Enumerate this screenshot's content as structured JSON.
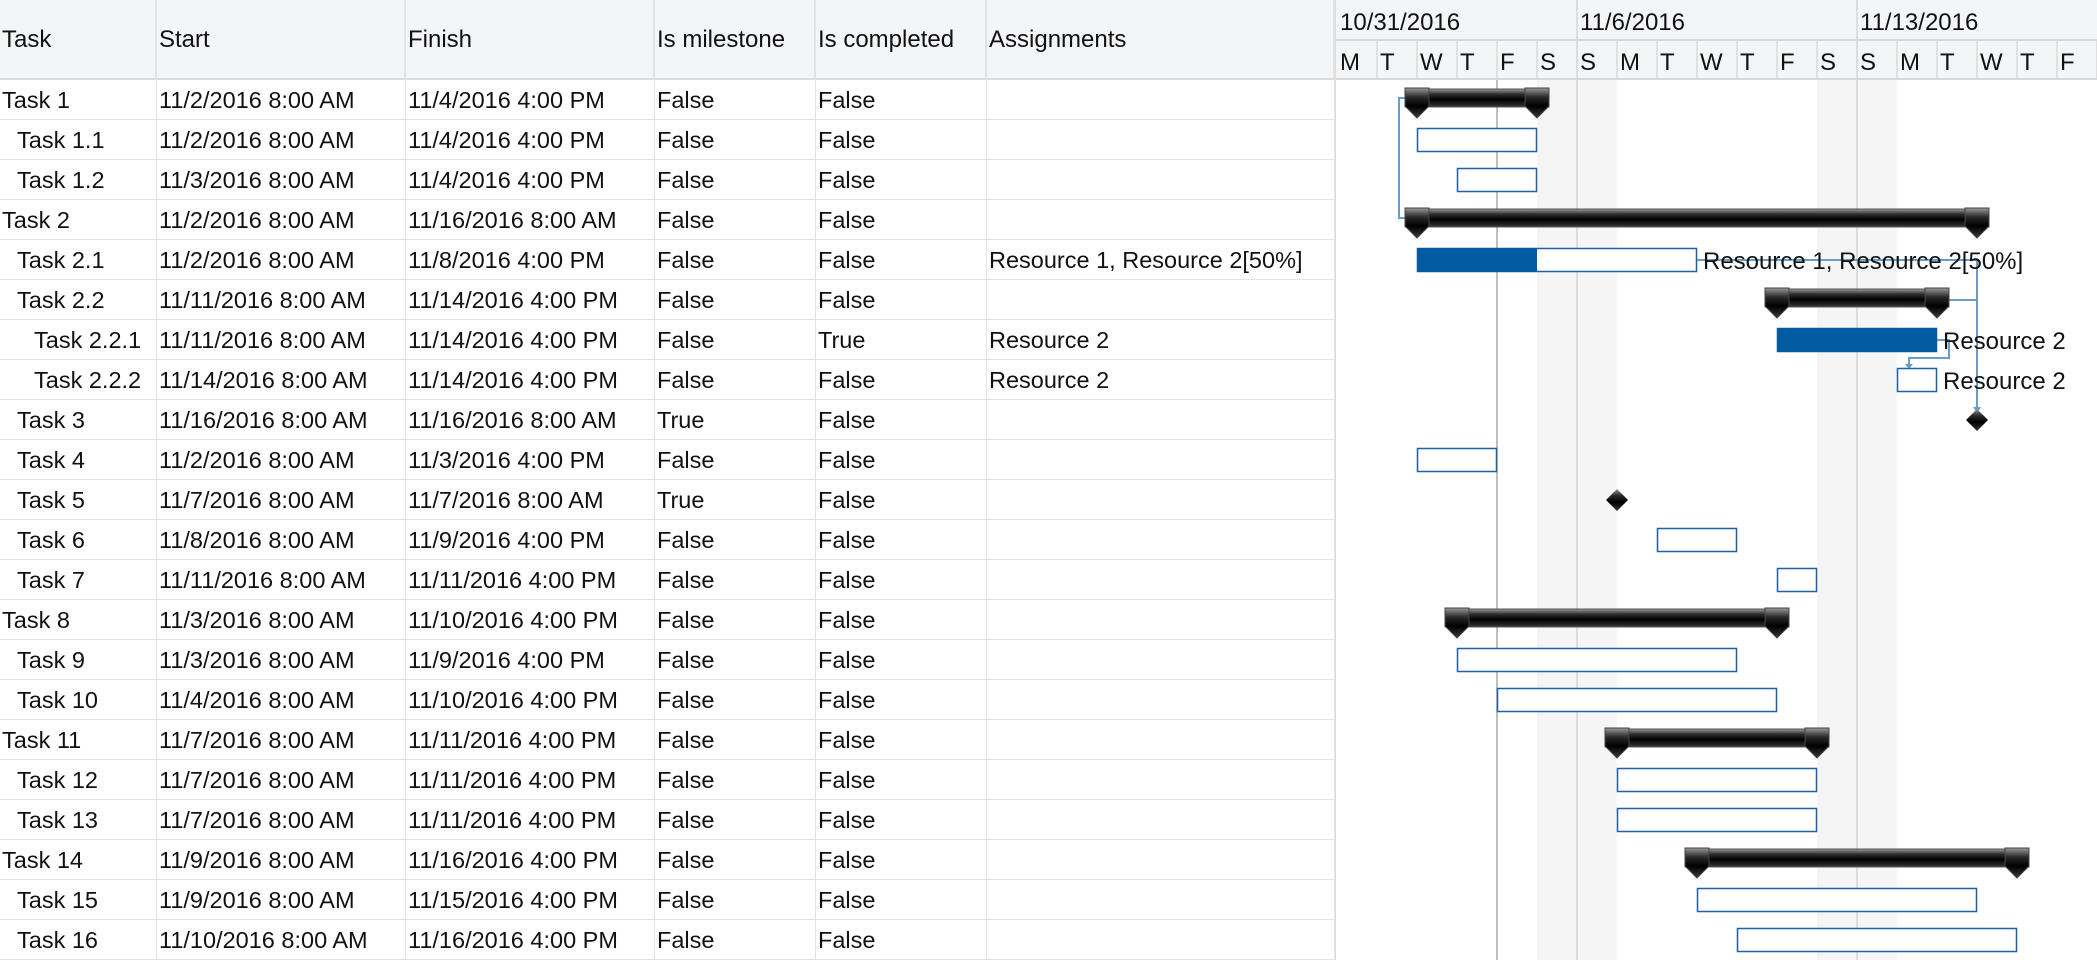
{
  "columns": {
    "task": "Task",
    "start": "Start",
    "finish": "Finish",
    "milestone": "Is milestone",
    "completed": "Is completed",
    "assignments": "Assignments"
  },
  "timeline": {
    "weeks": [
      "10/31/2016",
      "11/6/2016",
      "11/13/2016"
    ],
    "days": [
      "M",
      "T",
      "W",
      "T",
      "F",
      "S",
      "S",
      "M",
      "T",
      "W",
      "T",
      "F",
      "S",
      "S",
      "M",
      "T",
      "W",
      "T",
      "F"
    ],
    "weekend_shade": "#f5f5f5",
    "current_line_date": "11/4/2016"
  },
  "colors": {
    "bar_border": "#1f5fa8",
    "progress": "#005ba1",
    "summary": "#000000",
    "connector": "#6a9ec8"
  },
  "tasks": [
    {
      "name": "Task 1",
      "level": 0,
      "summary": true,
      "start": "11/2/2016 8:00 AM",
      "finish": "11/4/2016 4:00 PM",
      "milestone": "False",
      "completed": "False",
      "assignments": "",
      "progress": 0
    },
    {
      "name": "Task 1.1",
      "level": 1,
      "summary": false,
      "start": "11/2/2016 8:00 AM",
      "finish": "11/4/2016 4:00 PM",
      "milestone": "False",
      "completed": "False",
      "assignments": "",
      "progress": 0
    },
    {
      "name": "Task 1.2",
      "level": 1,
      "summary": false,
      "start": "11/3/2016 8:00 AM",
      "finish": "11/4/2016 4:00 PM",
      "milestone": "False",
      "completed": "False",
      "assignments": "",
      "progress": 0
    },
    {
      "name": "Task 2",
      "level": 0,
      "summary": true,
      "start": "11/2/2016 8:00 AM",
      "finish": "11/16/2016 8:00 AM",
      "milestone": "False",
      "completed": "False",
      "assignments": "",
      "progress": 0
    },
    {
      "name": "Task 2.1",
      "level": 1,
      "summary": false,
      "start": "11/2/2016 8:00 AM",
      "finish": "11/8/2016 4:00 PM",
      "milestone": "False",
      "completed": "False",
      "assignments": "Resource 1, Resource 2[50%]",
      "progress": 60
    },
    {
      "name": "Task 2.2",
      "level": 1,
      "summary": true,
      "start": "11/11/2016 8:00 AM",
      "finish": "11/14/2016 4:00 PM",
      "milestone": "False",
      "completed": "False",
      "assignments": "",
      "progress": 0
    },
    {
      "name": "Task 2.2.1",
      "level": 2,
      "summary": false,
      "start": "11/11/2016 8:00 AM",
      "finish": "11/14/2016 4:00 PM",
      "milestone": "False",
      "completed": "True",
      "assignments": "Resource 2",
      "progress": 100
    },
    {
      "name": "Task 2.2.2",
      "level": 2,
      "summary": false,
      "start": "11/14/2016 8:00 AM",
      "finish": "11/14/2016 4:00 PM",
      "milestone": "False",
      "completed": "False",
      "assignments": "Resource 2",
      "progress": 0
    },
    {
      "name": "Task 3",
      "level": 1,
      "summary": false,
      "start": "11/16/2016 8:00 AM",
      "finish": "11/16/2016 8:00 AM",
      "milestone": "True",
      "completed": "False",
      "assignments": "",
      "progress": 0
    },
    {
      "name": "Task 4",
      "level": 1,
      "summary": false,
      "start": "11/2/2016 8:00 AM",
      "finish": "11/3/2016 4:00 PM",
      "milestone": "False",
      "completed": "False",
      "assignments": "",
      "progress": 0
    },
    {
      "name": "Task 5",
      "level": 1,
      "summary": false,
      "start": "11/7/2016 8:00 AM",
      "finish": "11/7/2016 8:00 AM",
      "milestone": "True",
      "completed": "False",
      "assignments": "",
      "progress": 0
    },
    {
      "name": "Task 6",
      "level": 1,
      "summary": false,
      "start": "11/8/2016 8:00 AM",
      "finish": "11/9/2016 4:00 PM",
      "milestone": "False",
      "completed": "False",
      "assignments": "",
      "progress": 0
    },
    {
      "name": "Task 7",
      "level": 1,
      "summary": false,
      "start": "11/11/2016 8:00 AM",
      "finish": "11/11/2016 4:00 PM",
      "milestone": "False",
      "completed": "False",
      "assignments": "",
      "progress": 0
    },
    {
      "name": "Task 8",
      "level": 0,
      "summary": true,
      "start": "11/3/2016 8:00 AM",
      "finish": "11/10/2016 4:00 PM",
      "milestone": "False",
      "completed": "False",
      "assignments": "",
      "progress": 0
    },
    {
      "name": "Task 9",
      "level": 1,
      "summary": false,
      "start": "11/3/2016 8:00 AM",
      "finish": "11/9/2016 4:00 PM",
      "milestone": "False",
      "completed": "False",
      "assignments": "",
      "progress": 0
    },
    {
      "name": "Task 10",
      "level": 1,
      "summary": false,
      "start": "11/4/2016 8:00 AM",
      "finish": "11/10/2016 4:00 PM",
      "milestone": "False",
      "completed": "False",
      "assignments": "",
      "progress": 0
    },
    {
      "name": "Task 11",
      "level": 0,
      "summary": true,
      "start": "11/7/2016 8:00 AM",
      "finish": "11/11/2016 4:00 PM",
      "milestone": "False",
      "completed": "False",
      "assignments": "",
      "progress": 0
    },
    {
      "name": "Task 12",
      "level": 1,
      "summary": false,
      "start": "11/7/2016 8:00 AM",
      "finish": "11/11/2016 4:00 PM",
      "milestone": "False",
      "completed": "False",
      "assignments": "",
      "progress": 0
    },
    {
      "name": "Task 13",
      "level": 1,
      "summary": false,
      "start": "11/7/2016 8:00 AM",
      "finish": "11/11/2016 4:00 PM",
      "milestone": "False",
      "completed": "False",
      "assignments": "",
      "progress": 0
    },
    {
      "name": "Task 14",
      "level": 0,
      "summary": true,
      "start": "11/9/2016 8:00 AM",
      "finish": "11/16/2016 4:00 PM",
      "milestone": "False",
      "completed": "False",
      "assignments": "",
      "progress": 0
    },
    {
      "name": "Task 15",
      "level": 1,
      "summary": false,
      "start": "11/9/2016 8:00 AM",
      "finish": "11/15/2016 4:00 PM",
      "milestone": "False",
      "completed": "False",
      "assignments": "",
      "progress": 0
    },
    {
      "name": "Task 16",
      "level": 1,
      "summary": false,
      "start": "11/10/2016 8:00 AM",
      "finish": "11/16/2016 4:00 PM",
      "milestone": "False",
      "completed": "False",
      "assignments": "",
      "progress": 0
    }
  ]
}
